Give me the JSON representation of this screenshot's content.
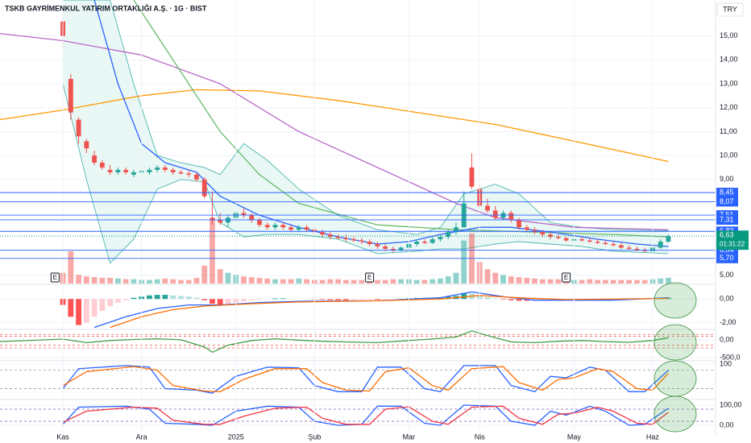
{
  "chart_data": [
    {
      "type": "candlestick",
      "title": "TSKB GAYRİMENKUL YATIRIM ORTAKLIĞI A.Ş. · 1G · BIST",
      "currency": "TRY",
      "xlim": [
        -8,
        83
      ],
      "xticks": [
        {
          "value": 0,
          "label": "Kas"
        },
        {
          "value": 10,
          "label": "Ara"
        },
        {
          "value": 22,
          "label": "2025"
        },
        {
          "value": 32,
          "label": "Şub"
        },
        {
          "value": 44,
          "label": "Mar"
        },
        {
          "value": 53,
          "label": "Nis"
        },
        {
          "value": 65,
          "label": "May"
        },
        {
          "value": 75,
          "label": "Haz"
        }
      ],
      "ylim": [
        4.65,
        16.5
      ],
      "yticks": [
        {
          "value": 5,
          "label": "5,00"
        },
        {
          "value": 9,
          "label": "9,00"
        },
        {
          "value": 10,
          "label": "10,00"
        },
        {
          "value": 11,
          "label": "11,00"
        },
        {
          "value": 12,
          "label": "12,00"
        },
        {
          "value": 13,
          "label": "13,00"
        },
        {
          "value": 14,
          "label": "14,00"
        },
        {
          "value": 15,
          "label": "15,00"
        }
      ],
      "grid": true,
      "up_color": "#26a69a",
      "down_color": "#ef5350",
      "open": [
        15.6,
        13.2,
        11.5,
        10.6,
        10.0,
        9.7,
        9.4,
        9.3,
        9.4,
        9.2,
        9.3,
        9.3,
        9.4,
        9.5,
        9.4,
        9.3,
        9.25,
        9.2,
        9.0,
        7.4,
        7.3,
        7.2,
        7.4,
        7.6,
        7.5,
        7.3,
        7.1,
        7.0,
        7.1,
        7.0,
        6.9,
        7.0,
        6.9,
        6.8,
        6.7,
        6.6,
        6.55,
        6.5,
        6.45,
        6.4,
        6.3,
        6.2,
        6.1,
        6.05,
        6.15,
        6.3,
        6.4,
        6.35,
        6.5,
        6.6,
        6.8,
        7.0,
        9.5,
        8.6,
        7.9,
        7.7,
        7.4,
        7.6,
        7.3,
        7.0,
        6.9,
        6.8,
        6.7,
        6.6,
        6.55,
        6.45,
        6.5,
        6.45,
        6.4,
        6.35,
        6.3,
        6.25,
        6.15,
        6.1,
        6.05,
        6.0,
        6.15,
        6.4
      ],
      "high": [
        15.8,
        13.4,
        11.6,
        10.7,
        10.2,
        9.8,
        9.6,
        9.5,
        9.5,
        9.4,
        9.4,
        9.5,
        9.6,
        9.6,
        9.5,
        9.4,
        9.4,
        9.3,
        9.1,
        8.5,
        7.6,
        7.5,
        7.7,
        7.8,
        7.6,
        7.4,
        7.2,
        7.2,
        7.2,
        7.1,
        7.1,
        7.1,
        7.0,
        6.9,
        6.8,
        6.7,
        6.7,
        6.6,
        6.55,
        6.5,
        6.4,
        6.3,
        6.2,
        6.2,
        6.4,
        6.5,
        6.5,
        6.6,
        6.7,
        6.9,
        7.2,
        8.5,
        10.1,
        8.8,
        8.2,
        7.9,
        7.7,
        7.7,
        7.4,
        7.1,
        7.0,
        6.9,
        6.8,
        6.7,
        6.6,
        6.6,
        6.6,
        6.55,
        6.5,
        6.45,
        6.4,
        6.35,
        6.25,
        6.2,
        6.15,
        6.2,
        6.5,
        6.7
      ],
      "low": [
        14.5,
        11.5,
        10.5,
        10.1,
        9.6,
        9.4,
        9.2,
        9.2,
        9.2,
        9.1,
        9.2,
        9.2,
        9.3,
        9.3,
        9.2,
        9.2,
        9.1,
        8.9,
        8.2,
        7.1,
        7.1,
        7.0,
        7.3,
        7.4,
        7.2,
        7.0,
        6.9,
        6.9,
        6.9,
        6.8,
        6.8,
        6.8,
        6.7,
        6.6,
        6.5,
        6.5,
        6.4,
        6.4,
        6.3,
        6.2,
        6.1,
        6.0,
        5.95,
        6.0,
        6.1,
        6.2,
        6.3,
        6.3,
        6.4,
        6.5,
        6.7,
        7.0,
        8.6,
        7.8,
        7.6,
        7.3,
        7.3,
        7.2,
        6.9,
        6.8,
        6.7,
        6.6,
        6.5,
        6.5,
        6.4,
        6.4,
        6.4,
        6.35,
        6.3,
        6.25,
        6.2,
        6.1,
        6.05,
        6.0,
        5.95,
        5.95,
        6.1,
        6.35
      ],
      "close": [
        15.0,
        11.8,
        10.8,
        10.3,
        9.7,
        9.5,
        9.3,
        9.4,
        9.3,
        9.3,
        9.35,
        9.4,
        9.5,
        9.4,
        9.3,
        9.25,
        9.2,
        9.0,
        8.3,
        7.3,
        7.2,
        7.4,
        7.6,
        7.5,
        7.3,
        7.1,
        7.0,
        7.1,
        7.0,
        6.9,
        7.0,
        6.9,
        6.8,
        6.7,
        6.6,
        6.55,
        6.5,
        6.45,
        6.4,
        6.3,
        6.2,
        6.1,
        6.05,
        6.15,
        6.3,
        6.4,
        6.35,
        6.5,
        6.6,
        6.8,
        7.0,
        8.0,
        8.7,
        7.9,
        7.7,
        7.4,
        7.6,
        7.3,
        7.0,
        6.9,
        6.8,
        6.7,
        6.6,
        6.55,
        6.45,
        6.5,
        6.45,
        6.4,
        6.35,
        6.3,
        6.25,
        6.15,
        6.1,
        6.05,
        6.0,
        6.15,
        6.4,
        6.63
      ],
      "volume": [
        15,
        45,
        12,
        10,
        9,
        8,
        8,
        7,
        6,
        6,
        5,
        5,
        6,
        7,
        6,
        5,
        5,
        8,
        25,
        90,
        20,
        15,
        12,
        10,
        9,
        8,
        7,
        6,
        6,
        6,
        7,
        6,
        5,
        5,
        6,
        6,
        5,
        5,
        5,
        6,
        5,
        5,
        6,
        6,
        6,
        5,
        5,
        6,
        7,
        10,
        15,
        60,
        70,
        30,
        20,
        15,
        12,
        10,
        9,
        8,
        7,
        6,
        6,
        6,
        5,
        5,
        5,
        6,
        5,
        5,
        5,
        5,
        5,
        5,
        5,
        6,
        7,
        8
      ],
      "bollinger": {
        "color": "#4db6ac",
        "fill": "#e0f4f1",
        "x": [
          0,
          3,
          6,
          9,
          12,
          15,
          18,
          20,
          23,
          26,
          30,
          35,
          40,
          45,
          48,
          51,
          55,
          58,
          62,
          66,
          70,
          77
        ],
        "upper": [
          16.5,
          16.5,
          16.5,
          13,
          10,
          9.7,
          9.5,
          9.2,
          10.5,
          9.8,
          8.6,
          7.5,
          6.9,
          6.7,
          7.0,
          8.4,
          8.8,
          8.4,
          7.2,
          7.0,
          6.9,
          6.85
        ],
        "lower": [
          13,
          9,
          5.5,
          6.5,
          8.6,
          9.0,
          8.9,
          7.2,
          6.6,
          6.7,
          6.7,
          6.5,
          5.9,
          6.0,
          6.1,
          6.1,
          6.3,
          6.4,
          6.3,
          6.2,
          6.0,
          5.9
        ]
      },
      "lines": [
        {
          "color": "#ff9800",
          "x": [
            -8,
            0,
            10,
            17,
            25,
            35,
            45,
            55,
            65,
            77
          ],
          "values": [
            11.5,
            11.9,
            12.5,
            12.75,
            12.7,
            12.3,
            11.8,
            11.3,
            10.6,
            9.75
          ]
        },
        {
          "color": "#ba68c8",
          "x": [
            -8,
            0,
            10,
            20,
            30,
            40,
            50,
            55,
            65,
            77
          ],
          "values": [
            15.1,
            14.8,
            14.2,
            13.0,
            11.0,
            9.5,
            8.0,
            7.4,
            7.0,
            6.9
          ]
        },
        {
          "color": "#66bb6a",
          "x": [
            9,
            15,
            20,
            25,
            30,
            40,
            50,
            60,
            70,
            77
          ],
          "values": [
            16.5,
            13.5,
            11.0,
            9.2,
            8.0,
            7.1,
            6.9,
            6.8,
            6.7,
            6.6
          ]
        },
        {
          "color": "#2962ff",
          "x": [
            4,
            7,
            10,
            13,
            17,
            20,
            25,
            30,
            35,
            40,
            44,
            48,
            53,
            57,
            62,
            68,
            73,
            77
          ],
          "values": [
            16.5,
            13,
            10.5,
            9.7,
            9.3,
            8.3,
            7.5,
            7.0,
            6.6,
            6.3,
            6.4,
            6.7,
            7.0,
            7.0,
            6.8,
            6.5,
            6.3,
            6.2
          ]
        }
      ],
      "levels": {
        "color": "#2962ff",
        "values": [
          8.45,
          8.07,
          7.51,
          7.31,
          6.83,
          6.04,
          5.7
        ],
        "value_labels": [
          "8,45",
          "8,07",
          "7,51",
          "7,31",
          "6,83",
          "6,04",
          "5,70"
        ]
      },
      "last": {
        "value": 6.63,
        "label": "6,63",
        "countdown": "01:31:22",
        "color": "#089981"
      },
      "events": {
        "x": [
          -1,
          39,
          64
        ],
        "labels": [
          "E",
          "E",
          "E"
        ]
      }
    },
    {
      "type": "macd",
      "ylim": [
        -2.5,
        1.1
      ],
      "yticks": [
        {
          "value": 0,
          "label": "0,00"
        },
        {
          "value": -2,
          "label": "-2,00"
        }
      ],
      "histogram": {
        "colors": [
          "#26a69a",
          "#b2dfdb",
          "#ffcdd2",
          "#ff5252"
        ],
        "values": [
          -0.5,
          -1.5,
          -2.2,
          -2.0,
          -1.5,
          -1.0,
          -0.6,
          -0.3,
          -0.1,
          0.1,
          0.2,
          0.3,
          0.35,
          0.35,
          0.3,
          0.25,
          0.2,
          0.1,
          -0.1,
          -0.4,
          -0.5,
          -0.4,
          -0.3,
          -0.2,
          -0.1,
          -0.05,
          0,
          0.05,
          0.05,
          0.02,
          0,
          0,
          -0.02,
          -0.05,
          -0.08,
          -0.1,
          -0.1,
          -0.08,
          -0.06,
          -0.05,
          -0.05,
          -0.03,
          0,
          0.02,
          0.05,
          0.08,
          0.1,
          0.12,
          0.15,
          0.2,
          0.25,
          0.5,
          0.45,
          0.3,
          0.15,
          0.05,
          -0.05,
          -0.1,
          -0.15,
          -0.15,
          -0.12,
          -0.1,
          -0.08,
          -0.05,
          -0.03,
          -0.02,
          0,
          0.01,
          0,
          -0.01,
          -0.02,
          -0.03,
          -0.03,
          -0.02,
          0,
          0.03,
          0.06,
          0.1
        ]
      },
      "lines": [
        {
          "color": "#2962ff",
          "x": [
            4,
            8,
            12,
            16,
            20,
            25,
            30,
            40,
            48,
            52,
            56,
            60,
            70,
            77
          ],
          "values": [
            -2.4,
            -1.5,
            -0.8,
            -0.5,
            -0.5,
            -0.3,
            -0.2,
            -0.15,
            0.1,
            0.6,
            0.2,
            -0.1,
            -0.1,
            0.1
          ]
        },
        {
          "color": "#ff6d00",
          "x": [
            6,
            10,
            14,
            18,
            24,
            30,
            40,
            48,
            53,
            58,
            64,
            77
          ],
          "values": [
            -2.4,
            -1.5,
            -0.9,
            -0.6,
            -0.4,
            -0.25,
            -0.15,
            0,
            0.3,
            0.1,
            -0.05,
            0.05
          ]
        }
      ]
    },
    {
      "type": "line",
      "ylim": [
        -570,
        270
      ],
      "yticks": [
        {
          "value": 0,
          "label": "0,00"
        },
        {
          "value": -500,
          "label": "-500,0"
        }
      ],
      "levels": {
        "color": "#ef5350",
        "values": [
          150,
          100,
          -150,
          -230
        ]
      },
      "lines": [
        {
          "color": "#43a047",
          "x": [
            -8,
            0,
            3,
            6,
            9,
            12,
            15,
            18,
            19,
            21,
            24,
            27,
            30,
            33,
            36,
            40,
            44,
            48,
            50,
            52,
            54,
            57,
            60,
            63,
            66,
            69,
            72,
            75,
            77
          ],
          "values": [
            -50,
            20,
            -80,
            -20,
            10,
            30,
            0,
            -200,
            -350,
            -150,
            -20,
            30,
            -10,
            -40,
            -60,
            -80,
            -20,
            40,
            80,
            250,
            120,
            -60,
            -80,
            -40,
            -20,
            -50,
            -70,
            -20,
            60
          ]
        }
      ]
    },
    {
      "type": "line",
      "ylim": [
        -13,
        108
      ],
      "yticks": [
        100
      ],
      "levels": {
        "color": "#9598a1",
        "values": [
          80,
          20
        ]
      },
      "lines": [
        {
          "color": "#2962ff",
          "x": [
            0,
            2,
            8,
            11,
            13,
            17,
            19,
            22,
            26,
            30,
            32,
            35,
            38,
            40,
            43,
            46,
            48,
            51,
            55,
            57,
            60,
            62,
            64,
            67,
            69,
            72,
            74,
            77
          ],
          "values": [
            20,
            85,
            95,
            90,
            20,
            15,
            5,
            60,
            90,
            88,
            30,
            10,
            10,
            90,
            90,
            20,
            10,
            95,
            95,
            30,
            10,
            60,
            55,
            90,
            80,
            10,
            10,
            80
          ]
        },
        {
          "color": "#ff6d00",
          "x": [
            0,
            3,
            9,
            12,
            14,
            18,
            20,
            23,
            27,
            31,
            33,
            36,
            39,
            41,
            44,
            47,
            49,
            52,
            56,
            58,
            61,
            63,
            65,
            68,
            70,
            73,
            75,
            77
          ],
          "values": [
            30,
            75,
            92,
            80,
            30,
            12,
            10,
            50,
            85,
            85,
            40,
            15,
            12,
            75,
            88,
            30,
            15,
            85,
            92,
            40,
            15,
            50,
            55,
            85,
            75,
            20,
            15,
            70
          ]
        }
      ]
    },
    {
      "type": "line",
      "ylim": [
        -40,
        124
      ],
      "yticks": [
        {
          "value": 100,
          "label": "100,00"
        },
        {
          "value": 0,
          "label": "0,00"
        }
      ],
      "levels": {
        "color": "#7e57c2",
        "values": [
          80,
          20
        ]
      },
      "lines": [
        {
          "color": "#2962ff",
          "x": [
            0,
            2,
            8,
            11,
            13,
            17,
            19,
            22,
            26,
            30,
            32,
            35,
            38,
            40,
            43,
            46,
            48,
            51,
            55,
            57,
            60,
            62,
            64,
            67,
            69,
            72,
            74,
            77
          ],
          "values": [
            5,
            90,
            95,
            80,
            10,
            5,
            0,
            70,
            95,
            90,
            20,
            0,
            5,
            95,
            95,
            10,
            0,
            100,
            95,
            20,
            0,
            70,
            50,
            95,
            70,
            0,
            5,
            85
          ]
        },
        {
          "color": "#f23645",
          "x": [
            0,
            3,
            9,
            12,
            14,
            18,
            20,
            23,
            27,
            31,
            33,
            36,
            39,
            41,
            44,
            47,
            49,
            52,
            56,
            58,
            61,
            63,
            65,
            68,
            70,
            73,
            75,
            77
          ],
          "values": [
            15,
            70,
            90,
            85,
            25,
            5,
            5,
            45,
            85,
            90,
            35,
            5,
            5,
            80,
            92,
            20,
            5,
            90,
            95,
            35,
            5,
            55,
            60,
            90,
            70,
            10,
            5,
            65
          ]
        }
      ]
    }
  ]
}
